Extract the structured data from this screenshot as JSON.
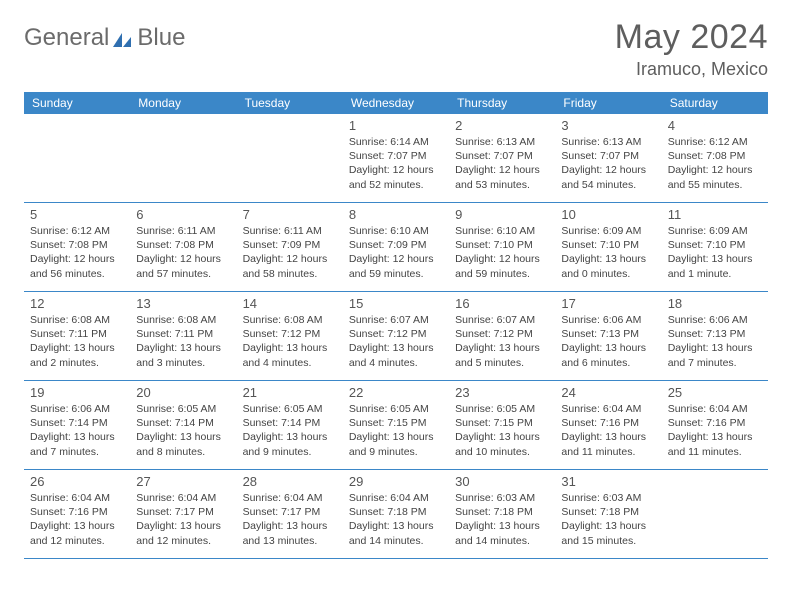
{
  "brand": {
    "part1": "General",
    "part2": "Blue"
  },
  "title": "May 2024",
  "location": "Iramuco, Mexico",
  "colors": {
    "header_bar": "#3b87c8",
    "rule": "#3b87c8",
    "text": "#444444",
    "title": "#5e5e5e",
    "logo_gray": "#6b6b6b",
    "logo_blue": "#3b7fc4",
    "bg": "#ffffff"
  },
  "weekdays": [
    "Sunday",
    "Monday",
    "Tuesday",
    "Wednesday",
    "Thursday",
    "Friday",
    "Saturday"
  ],
  "weeks": [
    [
      {
        "n": "",
        "sr": "",
        "ss": "",
        "dl": ""
      },
      {
        "n": "",
        "sr": "",
        "ss": "",
        "dl": ""
      },
      {
        "n": "",
        "sr": "",
        "ss": "",
        "dl": ""
      },
      {
        "n": "1",
        "sr": "6:14 AM",
        "ss": "7:07 PM",
        "dl": "12 hours and 52 minutes."
      },
      {
        "n": "2",
        "sr": "6:13 AM",
        "ss": "7:07 PM",
        "dl": "12 hours and 53 minutes."
      },
      {
        "n": "3",
        "sr": "6:13 AM",
        "ss": "7:07 PM",
        "dl": "12 hours and 54 minutes."
      },
      {
        "n": "4",
        "sr": "6:12 AM",
        "ss": "7:08 PM",
        "dl": "12 hours and 55 minutes."
      }
    ],
    [
      {
        "n": "5",
        "sr": "6:12 AM",
        "ss": "7:08 PM",
        "dl": "12 hours and 56 minutes."
      },
      {
        "n": "6",
        "sr": "6:11 AM",
        "ss": "7:08 PM",
        "dl": "12 hours and 57 minutes."
      },
      {
        "n": "7",
        "sr": "6:11 AM",
        "ss": "7:09 PM",
        "dl": "12 hours and 58 minutes."
      },
      {
        "n": "8",
        "sr": "6:10 AM",
        "ss": "7:09 PM",
        "dl": "12 hours and 59 minutes."
      },
      {
        "n": "9",
        "sr": "6:10 AM",
        "ss": "7:10 PM",
        "dl": "12 hours and 59 minutes."
      },
      {
        "n": "10",
        "sr": "6:09 AM",
        "ss": "7:10 PM",
        "dl": "13 hours and 0 minutes."
      },
      {
        "n": "11",
        "sr": "6:09 AM",
        "ss": "7:10 PM",
        "dl": "13 hours and 1 minute."
      }
    ],
    [
      {
        "n": "12",
        "sr": "6:08 AM",
        "ss": "7:11 PM",
        "dl": "13 hours and 2 minutes."
      },
      {
        "n": "13",
        "sr": "6:08 AM",
        "ss": "7:11 PM",
        "dl": "13 hours and 3 minutes."
      },
      {
        "n": "14",
        "sr": "6:08 AM",
        "ss": "7:12 PM",
        "dl": "13 hours and 4 minutes."
      },
      {
        "n": "15",
        "sr": "6:07 AM",
        "ss": "7:12 PM",
        "dl": "13 hours and 4 minutes."
      },
      {
        "n": "16",
        "sr": "6:07 AM",
        "ss": "7:12 PM",
        "dl": "13 hours and 5 minutes."
      },
      {
        "n": "17",
        "sr": "6:06 AM",
        "ss": "7:13 PM",
        "dl": "13 hours and 6 minutes."
      },
      {
        "n": "18",
        "sr": "6:06 AM",
        "ss": "7:13 PM",
        "dl": "13 hours and 7 minutes."
      }
    ],
    [
      {
        "n": "19",
        "sr": "6:06 AM",
        "ss": "7:14 PM",
        "dl": "13 hours and 7 minutes."
      },
      {
        "n": "20",
        "sr": "6:05 AM",
        "ss": "7:14 PM",
        "dl": "13 hours and 8 minutes."
      },
      {
        "n": "21",
        "sr": "6:05 AM",
        "ss": "7:14 PM",
        "dl": "13 hours and 9 minutes."
      },
      {
        "n": "22",
        "sr": "6:05 AM",
        "ss": "7:15 PM",
        "dl": "13 hours and 9 minutes."
      },
      {
        "n": "23",
        "sr": "6:05 AM",
        "ss": "7:15 PM",
        "dl": "13 hours and 10 minutes."
      },
      {
        "n": "24",
        "sr": "6:04 AM",
        "ss": "7:16 PM",
        "dl": "13 hours and 11 minutes."
      },
      {
        "n": "25",
        "sr": "6:04 AM",
        "ss": "7:16 PM",
        "dl": "13 hours and 11 minutes."
      }
    ],
    [
      {
        "n": "26",
        "sr": "6:04 AM",
        "ss": "7:16 PM",
        "dl": "13 hours and 12 minutes."
      },
      {
        "n": "27",
        "sr": "6:04 AM",
        "ss": "7:17 PM",
        "dl": "13 hours and 12 minutes."
      },
      {
        "n": "28",
        "sr": "6:04 AM",
        "ss": "7:17 PM",
        "dl": "13 hours and 13 minutes."
      },
      {
        "n": "29",
        "sr": "6:04 AM",
        "ss": "7:18 PM",
        "dl": "13 hours and 14 minutes."
      },
      {
        "n": "30",
        "sr": "6:03 AM",
        "ss": "7:18 PM",
        "dl": "13 hours and 14 minutes."
      },
      {
        "n": "31",
        "sr": "6:03 AM",
        "ss": "7:18 PM",
        "dl": "13 hours and 15 minutes."
      },
      {
        "n": "",
        "sr": "",
        "ss": "",
        "dl": ""
      }
    ]
  ],
  "labels": {
    "sunrise": "Sunrise:",
    "sunset": "Sunset:",
    "daylight": "Daylight:"
  }
}
